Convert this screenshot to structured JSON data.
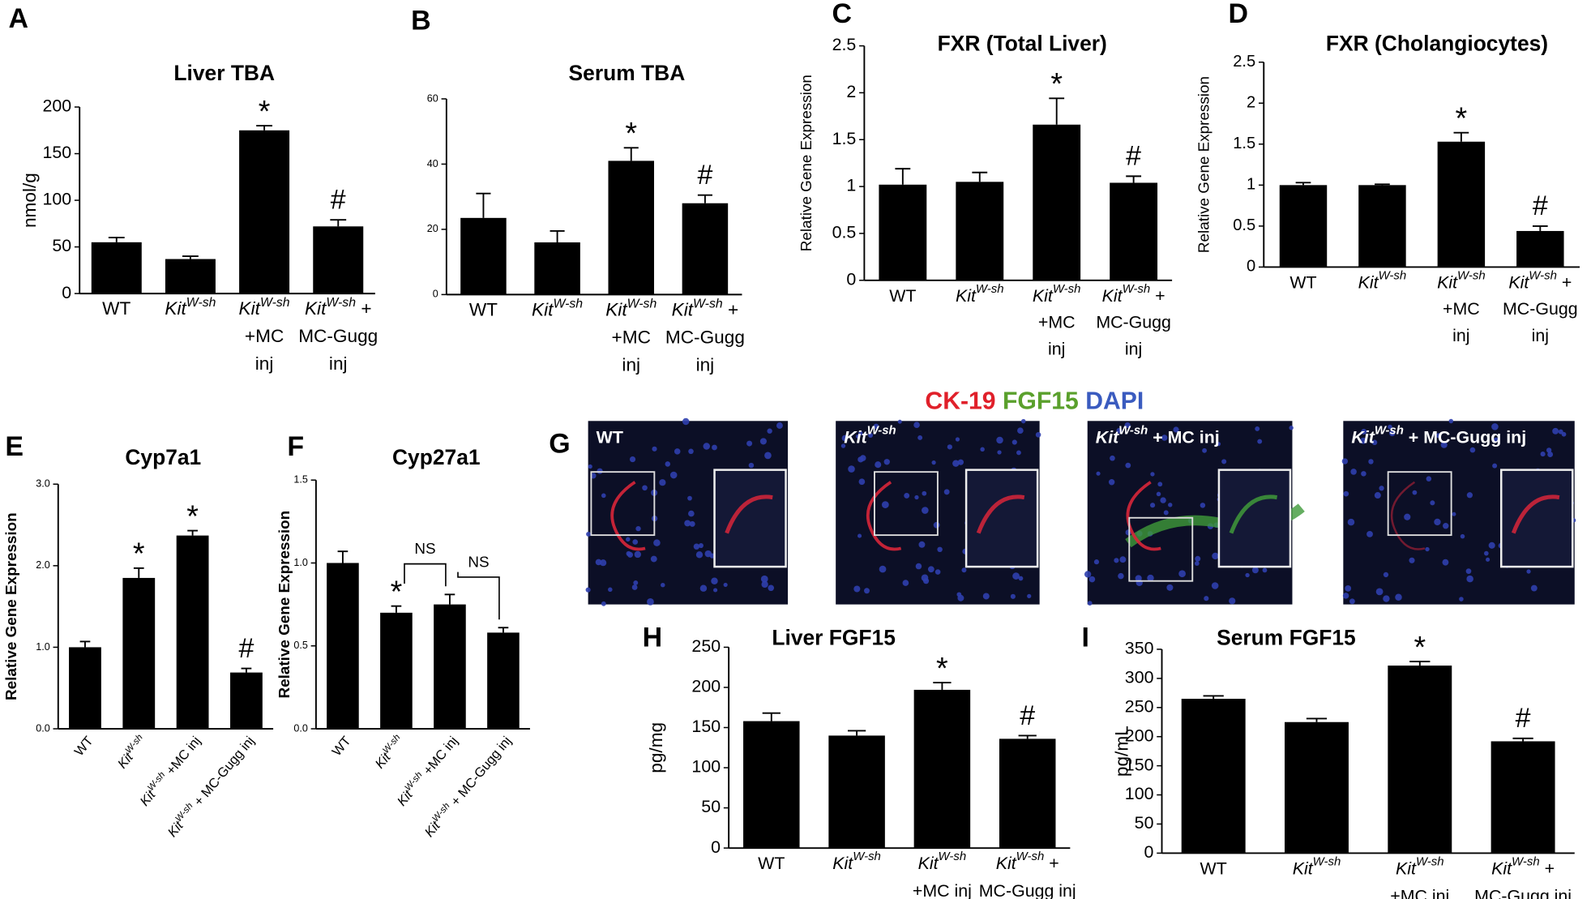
{
  "chart_data": [
    {
      "type": "bar",
      "panel": "A",
      "title": "Liver TBA",
      "ylabel": "nmol/g",
      "categories": [
        "WT",
        "KitW-sh",
        "KitW-sh\n+MC\ninj",
        "KitW-sh +\nMC-Gugg\ninj"
      ],
      "values": [
        55,
        37,
        175,
        72
      ],
      "errors": [
        5,
        3,
        5,
        7
      ],
      "markers": [
        null,
        null,
        "*",
        "#"
      ],
      "ylim": [
        0,
        200
      ],
      "yticks": [
        0,
        50,
        100,
        150,
        200
      ],
      "color": "#000000"
    },
    {
      "type": "bar",
      "panel": "B",
      "title": "Serum TBA",
      "categories": [
        "WT",
        "KitW-sh",
        "KitW-sh\n+MC\ninj",
        "KitW-sh +\nMC-Gugg\ninj"
      ],
      "values": [
        23.5,
        16,
        41,
        28
      ],
      "errors": [
        7.5,
        3.5,
        4,
        2.5
      ],
      "markers": [
        null,
        null,
        "*",
        "#"
      ],
      "ylim": [
        0,
        60
      ],
      "yticks": [
        0,
        20,
        40,
        60
      ],
      "color": "#000000"
    },
    {
      "type": "bar",
      "panel": "C",
      "title": "FXR (Total Liver)",
      "ylabel": "Relative Gene Expression",
      "categories": [
        "WT",
        "KitW-sh",
        "KitW-sh\n+MC\ninj",
        "KitW-sh +\nMC-Gugg\ninj"
      ],
      "values": [
        1.02,
        1.05,
        1.66,
        1.04
      ],
      "errors": [
        0.17,
        0.1,
        0.28,
        0.07
      ],
      "markers": [
        null,
        null,
        "*",
        "#"
      ],
      "ylim": [
        0,
        2.5
      ],
      "yticks": [
        0,
        0.5,
        1,
        1.5,
        2,
        2.5
      ],
      "color": "#000000"
    },
    {
      "type": "bar",
      "panel": "D",
      "title": "FXR (Cholangiocytes)",
      "ylabel": "Relative Gene Expression",
      "categories": [
        "WT",
        "KitW-sh",
        "KitW-sh\n+MC\ninj",
        "KitW-sh +\nMC-Gugg\ninj"
      ],
      "values": [
        1.0,
        1.0,
        1.53,
        0.44
      ],
      "errors": [
        0.03,
        0.01,
        0.11,
        0.06
      ],
      "markers": [
        null,
        null,
        "*",
        "#"
      ],
      "ylim": [
        0,
        2.5
      ],
      "yticks": [
        0,
        0.5,
        1,
        1.5,
        2,
        2.5
      ],
      "color": "#000000"
    },
    {
      "type": "bar",
      "panel": "E",
      "title": "Cyp7a1",
      "ylabel": "Relative Gene Expression",
      "categories": [
        "WT",
        "KitW-sh",
        "KitW-sh +MC inj",
        "KitW-sh + MC-Gugg inj"
      ],
      "values": [
        1.0,
        1.85,
        2.37,
        0.69
      ],
      "errors": [
        0.07,
        0.12,
        0.06,
        0.05
      ],
      "markers": [
        null,
        "*",
        "*",
        "#"
      ],
      "ylim": [
        0,
        3
      ],
      "yticks": [
        {
          "value": 0,
          "label": "0.0"
        },
        {
          "value": 1,
          "label": "1.0"
        },
        {
          "value": 2,
          "label": "2.0"
        },
        {
          "value": 3,
          "label": "3.0"
        }
      ],
      "color": "#000000"
    },
    {
      "type": "bar",
      "panel": "F",
      "title": "Cyp27a1",
      "ylabel": "Relative Gene Expression",
      "categories": [
        "WT",
        "KitW-sh",
        "KitW-sh +MC inj",
        "KitW-sh + MC-Gugg inj"
      ],
      "values": [
        1.0,
        0.7,
        0.75,
        0.58
      ],
      "errors": [
        0.07,
        0.04,
        0.06,
        0.03
      ],
      "markers": [
        null,
        "*",
        null,
        null
      ],
      "brackets": [
        "NS",
        "NS"
      ],
      "ylim": [
        0,
        1.5
      ],
      "yticks": [
        {
          "value": 0,
          "label": "0.0"
        },
        {
          "value": 0.5,
          "label": "0.5"
        },
        {
          "value": 1,
          "label": "1.0"
        },
        {
          "value": 1.5,
          "label": "1.5"
        }
      ],
      "color": "#000000"
    },
    {
      "type": "bar",
      "panel": "H",
      "title": "Liver FGF15",
      "ylabel": "pg/mg",
      "categories": [
        "WT",
        "KitW-sh",
        "KitW-sh\n+MC inj",
        "KitW-sh +\nMC-Gugg inj"
      ],
      "values": [
        158,
        140,
        197,
        136
      ],
      "errors": [
        10,
        6,
        9,
        4
      ],
      "markers": [
        null,
        null,
        "*",
        "#"
      ],
      "ylim": [
        0,
        250
      ],
      "yticks": [
        0,
        50,
        100,
        150,
        200,
        250
      ],
      "color": "#000000"
    },
    {
      "type": "bar",
      "panel": "I",
      "title": "Serum FGF15",
      "ylabel": "pg/mL",
      "categories": [
        "WT",
        "KitW-sh",
        "KitW-sh\n+MC inj",
        "KitW-sh +\nMC-Gugg inj"
      ],
      "values": [
        265,
        225,
        322,
        192
      ],
      "errors": [
        5,
        6,
        7,
        5
      ],
      "markers": [
        null,
        null,
        "*",
        "#"
      ],
      "ylim": [
        0,
        350
      ],
      "yticks": [
        0,
        50,
        100,
        150,
        200,
        250,
        300,
        350
      ],
      "color": "#000000"
    }
  ],
  "figure_g": {
    "panel": "G",
    "stains": [
      {
        "text": "CK-19",
        "color": "#e0202a"
      },
      {
        "text": "FGF15",
        "color": "#5aa02c"
      },
      {
        "text": "DAPI",
        "color": "#3a5bbf"
      }
    ],
    "images": [
      "WT",
      "KitW-sh",
      "KitW-sh + MC inj",
      "KitW-sh + MC-Gugg inj"
    ]
  }
}
